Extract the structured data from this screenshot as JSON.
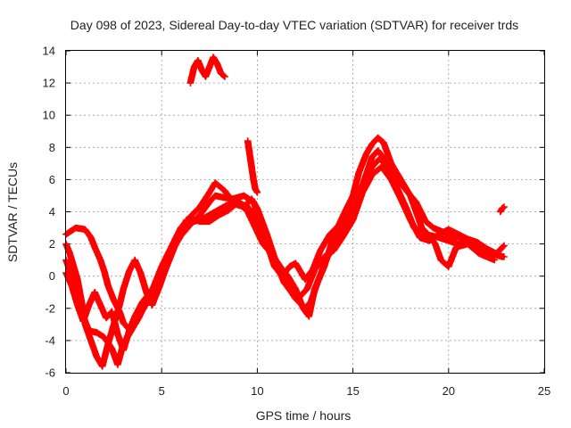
{
  "chart_data": {
    "type": "scatter",
    "title": "Day 098 of 2023, Sidereal Day-to-day VTEC variation (SDTVAR) for receiver trds",
    "xlabel": "GPS time / hours",
    "ylabel": "SDTVAR / TECUs",
    "xlim": [
      0,
      25
    ],
    "ylim": [
      -6,
      14
    ],
    "xticks": [
      "0",
      "5",
      "10",
      "15",
      "20",
      "25"
    ],
    "yticks": [
      "-6",
      "-4",
      "-2",
      "0",
      "2",
      "4",
      "6",
      "8",
      "10",
      "12",
      "14"
    ],
    "xtick_values": [
      0,
      5,
      10,
      15,
      20,
      25
    ],
    "ytick_values": [
      -6,
      -4,
      -2,
      0,
      2,
      4,
      6,
      8,
      10,
      12,
      14
    ],
    "grid": true,
    "marker": "plus",
    "color": "#ff0000",
    "series": [
      {
        "name": "trace-1",
        "points": [
          [
            0.0,
            2.6
          ],
          [
            0.5,
            3.0
          ],
          [
            1.0,
            2.9
          ],
          [
            1.3,
            2.4
          ],
          [
            1.5,
            1.8
          ],
          [
            1.8,
            1.0
          ],
          [
            2.0,
            0.3
          ],
          [
            2.2,
            -0.6
          ],
          [
            2.5,
            -1.5
          ],
          [
            2.8,
            -2.2
          ],
          [
            3.0,
            -2.9
          ],
          [
            3.3,
            -3.3
          ],
          [
            3.6,
            -2.8
          ],
          [
            4.0,
            -2.1
          ],
          [
            4.3,
            -1.5
          ],
          [
            4.6,
            -0.7
          ],
          [
            5.0,
            0.3
          ],
          [
            5.5,
            1.5
          ],
          [
            6.0,
            2.5
          ],
          [
            6.5,
            3.2
          ],
          [
            7.0,
            3.8
          ],
          [
            7.5,
            4.6
          ],
          [
            7.8,
            5.0
          ],
          [
            8.2,
            4.9
          ],
          [
            8.7,
            4.8
          ],
          [
            9.3,
            5.0
          ],
          [
            9.8,
            4.6
          ],
          [
            10.2,
            3.4
          ],
          [
            10.6,
            1.8
          ],
          [
            11.0,
            0.6
          ],
          [
            11.5,
            -0.5
          ],
          [
            12.0,
            -1.4
          ],
          [
            12.5,
            -2.0
          ],
          [
            12.8,
            -1.6
          ],
          [
            13.2,
            -0.2
          ],
          [
            13.6,
            1.0
          ],
          [
            14.0,
            2.0
          ],
          [
            14.5,
            3.0
          ],
          [
            15.0,
            4.0
          ],
          [
            15.5,
            5.5
          ],
          [
            16.0,
            6.8
          ],
          [
            16.4,
            7.3
          ],
          [
            16.8,
            6.8
          ],
          [
            17.3,
            5.5
          ],
          [
            17.8,
            4.2
          ],
          [
            18.2,
            3.0
          ],
          [
            18.8,
            2.6
          ],
          [
            19.5,
            2.4
          ],
          [
            20.0,
            2.2
          ],
          [
            20.5,
            2.0
          ],
          [
            21.0,
            2.2
          ],
          [
            21.5,
            1.9
          ],
          [
            22.0,
            1.6
          ],
          [
            22.5,
            1.3
          ],
          [
            22.9,
            1.2
          ]
        ]
      },
      {
        "name": "trace-2",
        "points": [
          [
            0.0,
            1.0
          ],
          [
            0.3,
            0.0
          ],
          [
            0.6,
            -1.2
          ],
          [
            0.9,
            -2.5
          ],
          [
            1.2,
            -3.4
          ],
          [
            1.6,
            -3.5
          ],
          [
            2.0,
            -3.8
          ],
          [
            2.4,
            -4.5
          ],
          [
            2.7,
            -5.5
          ],
          [
            3.0,
            -4.2
          ],
          [
            3.4,
            -3.4
          ],
          [
            3.8,
            -2.6
          ],
          [
            4.2,
            -1.6
          ],
          [
            4.6,
            -0.6
          ],
          [
            5.0,
            0.6
          ],
          [
            5.5,
            1.8
          ],
          [
            6.0,
            3.0
          ],
          [
            6.5,
            3.7
          ],
          [
            7.0,
            4.3
          ],
          [
            7.5,
            5.2
          ],
          [
            7.8,
            5.8
          ],
          [
            8.3,
            5.3
          ],
          [
            8.8,
            4.5
          ],
          [
            9.3,
            4.3
          ],
          [
            9.7,
            4.8
          ],
          [
            10.0,
            4.2
          ],
          [
            10.5,
            2.6
          ],
          [
            11.0,
            0.8
          ],
          [
            11.4,
            -0.4
          ],
          [
            11.8,
            -1.0
          ],
          [
            12.2,
            -1.3
          ],
          [
            12.6,
            -0.8
          ],
          [
            13.0,
            0.4
          ],
          [
            13.5,
            1.2
          ],
          [
            14.0,
            1.6
          ],
          [
            14.5,
            2.5
          ],
          [
            15.0,
            3.5
          ],
          [
            15.5,
            5.2
          ],
          [
            16.0,
            6.3
          ],
          [
            16.5,
            6.8
          ],
          [
            17.0,
            6.0
          ],
          [
            17.5,
            4.8
          ],
          [
            18.0,
            3.5
          ],
          [
            18.5,
            2.4
          ],
          [
            19.0,
            2.2
          ],
          [
            19.5,
            2.6
          ],
          [
            20.0,
            2.9
          ],
          [
            20.5,
            2.6
          ],
          [
            21.0,
            2.3
          ],
          [
            21.5,
            2.1
          ],
          [
            22.0,
            1.7
          ],
          [
            22.5,
            1.4
          ],
          [
            22.9,
            1.9
          ]
        ]
      },
      {
        "name": "trace-3",
        "points": [
          [
            0.0,
            2.0
          ],
          [
            0.2,
            1.4
          ],
          [
            0.4,
            0.6
          ],
          [
            0.6,
            -0.2
          ],
          [
            0.8,
            -1.5
          ],
          [
            1.0,
            -3.0
          ],
          [
            1.3,
            -4.0
          ],
          [
            1.6,
            -5.0
          ],
          [
            1.9,
            -5.6
          ],
          [
            2.2,
            -4.2
          ],
          [
            2.5,
            -3.0
          ],
          [
            2.8,
            -1.8
          ],
          [
            3.0,
            -0.8
          ],
          [
            3.3,
            0.3
          ],
          [
            3.6,
            1.0
          ],
          [
            3.9,
            0.2
          ],
          [
            4.2,
            -1.0
          ],
          [
            4.5,
            -1.8
          ],
          [
            4.9,
            -0.6
          ],
          [
            5.3,
            0.8
          ],
          [
            5.7,
            2.0
          ],
          [
            6.1,
            3.1
          ],
          [
            6.5,
            3.6
          ],
          [
            7.0,
            3.4
          ],
          [
            7.5,
            3.4
          ],
          [
            8.0,
            3.8
          ],
          [
            8.5,
            4.1
          ],
          [
            9.0,
            4.6
          ],
          [
            9.5,
            4.0
          ],
          [
            9.9,
            3.0
          ],
          [
            10.3,
            2.0
          ],
          [
            10.8,
            1.3
          ],
          [
            11.2,
            0.6
          ],
          [
            11.6,
            0.0
          ],
          [
            12.0,
            -0.8
          ],
          [
            12.4,
            -2.0
          ],
          [
            12.7,
            -2.5
          ],
          [
            13.0,
            -0.8
          ],
          [
            13.5,
            0.6
          ],
          [
            14.0,
            2.5
          ],
          [
            14.5,
            3.8
          ],
          [
            15.0,
            5.0
          ],
          [
            15.3,
            6.4
          ],
          [
            15.7,
            7.6
          ],
          [
            16.0,
            8.2
          ],
          [
            16.3,
            8.6
          ],
          [
            16.6,
            8.3
          ],
          [
            17.0,
            7.0
          ],
          [
            17.5,
            6.0
          ],
          [
            18.0,
            5.0
          ],
          [
            18.3,
            4.0
          ],
          [
            18.6,
            3.0
          ],
          [
            19.0,
            2.5
          ],
          [
            19.3,
            2.0
          ],
          [
            19.6,
            1.0
          ],
          [
            20.0,
            0.6
          ],
          [
            20.4,
            1.8
          ],
          [
            21.0,
            2.0
          ],
          [
            21.6,
            1.4
          ],
          [
            22.0,
            1.2
          ],
          [
            22.4,
            1.0
          ]
        ]
      },
      {
        "name": "trace-4",
        "points": [
          [
            0.0,
            0.2
          ],
          [
            0.3,
            -0.6
          ],
          [
            0.6,
            -1.8
          ],
          [
            0.9,
            -2.8
          ],
          [
            1.2,
            -1.8
          ],
          [
            1.5,
            -1.0
          ],
          [
            1.8,
            -1.8
          ],
          [
            2.1,
            -2.6
          ],
          [
            2.4,
            -2.2
          ],
          [
            2.7,
            -3.6
          ],
          [
            3.0,
            -4.6
          ],
          [
            3.3,
            -3.4
          ],
          [
            3.6,
            -2.5
          ],
          [
            4.0,
            -1.6
          ],
          [
            4.4,
            -1.0
          ],
          [
            4.8,
            -0.8
          ],
          [
            5.2,
            0.4
          ],
          [
            5.6,
            1.6
          ],
          [
            6.0,
            2.8
          ],
          [
            6.3,
            3.5
          ],
          [
            6.7,
            3.4
          ],
          [
            7.2,
            3.6
          ],
          [
            7.8,
            4.0
          ],
          [
            8.4,
            4.4
          ],
          [
            9.0,
            4.6
          ],
          [
            9.6,
            4.2
          ],
          [
            10.0,
            3.5
          ],
          [
            10.5,
            2.0
          ],
          [
            10.9,
            0.6
          ],
          [
            11.3,
            0.0
          ],
          [
            11.7,
            0.6
          ],
          [
            12.0,
            0.8
          ],
          [
            12.5,
            -0.2
          ],
          [
            12.9,
            0.4
          ],
          [
            13.3,
            1.6
          ],
          [
            13.8,
            2.6
          ],
          [
            14.3,
            3.2
          ],
          [
            14.8,
            3.8
          ],
          [
            15.2,
            4.6
          ],
          [
            15.6,
            6.0
          ],
          [
            16.0,
            7.4
          ],
          [
            16.3,
            7.8
          ],
          [
            16.7,
            7.2
          ],
          [
            17.2,
            6.2
          ],
          [
            17.8,
            5.3
          ],
          [
            18.3,
            4.6
          ],
          [
            18.8,
            3.4
          ],
          [
            19.2,
            3.0
          ],
          [
            19.6,
            2.8
          ],
          [
            20.2,
            2.5
          ],
          [
            20.8,
            2.4
          ],
          [
            21.4,
            1.8
          ],
          [
            21.9,
            1.5
          ],
          [
            22.4,
            1.4
          ],
          [
            22.8,
            1.2
          ]
        ]
      },
      {
        "name": "trace-5",
        "points": [
          [
            6.5,
            12.0
          ],
          [
            6.7,
            13.0
          ],
          [
            6.9,
            13.4
          ],
          [
            7.1,
            12.8
          ],
          [
            7.3,
            12.4
          ],
          [
            7.5,
            13.0
          ],
          [
            7.7,
            13.6
          ],
          [
            7.9,
            13.2
          ],
          [
            8.1,
            12.6
          ],
          [
            8.3,
            12.4
          ]
        ]
      },
      {
        "name": "trace-6",
        "points": [
          [
            9.5,
            8.4
          ],
          [
            9.6,
            7.6
          ],
          [
            9.7,
            6.8
          ],
          [
            9.8,
            6.0
          ],
          [
            9.9,
            5.4
          ],
          [
            10.0,
            5.2
          ]
        ]
      },
      {
        "name": "trace-7",
        "points": [
          [
            22.7,
            4.0
          ],
          [
            22.8,
            4.2
          ],
          [
            22.9,
            4.3
          ]
        ]
      }
    ]
  }
}
